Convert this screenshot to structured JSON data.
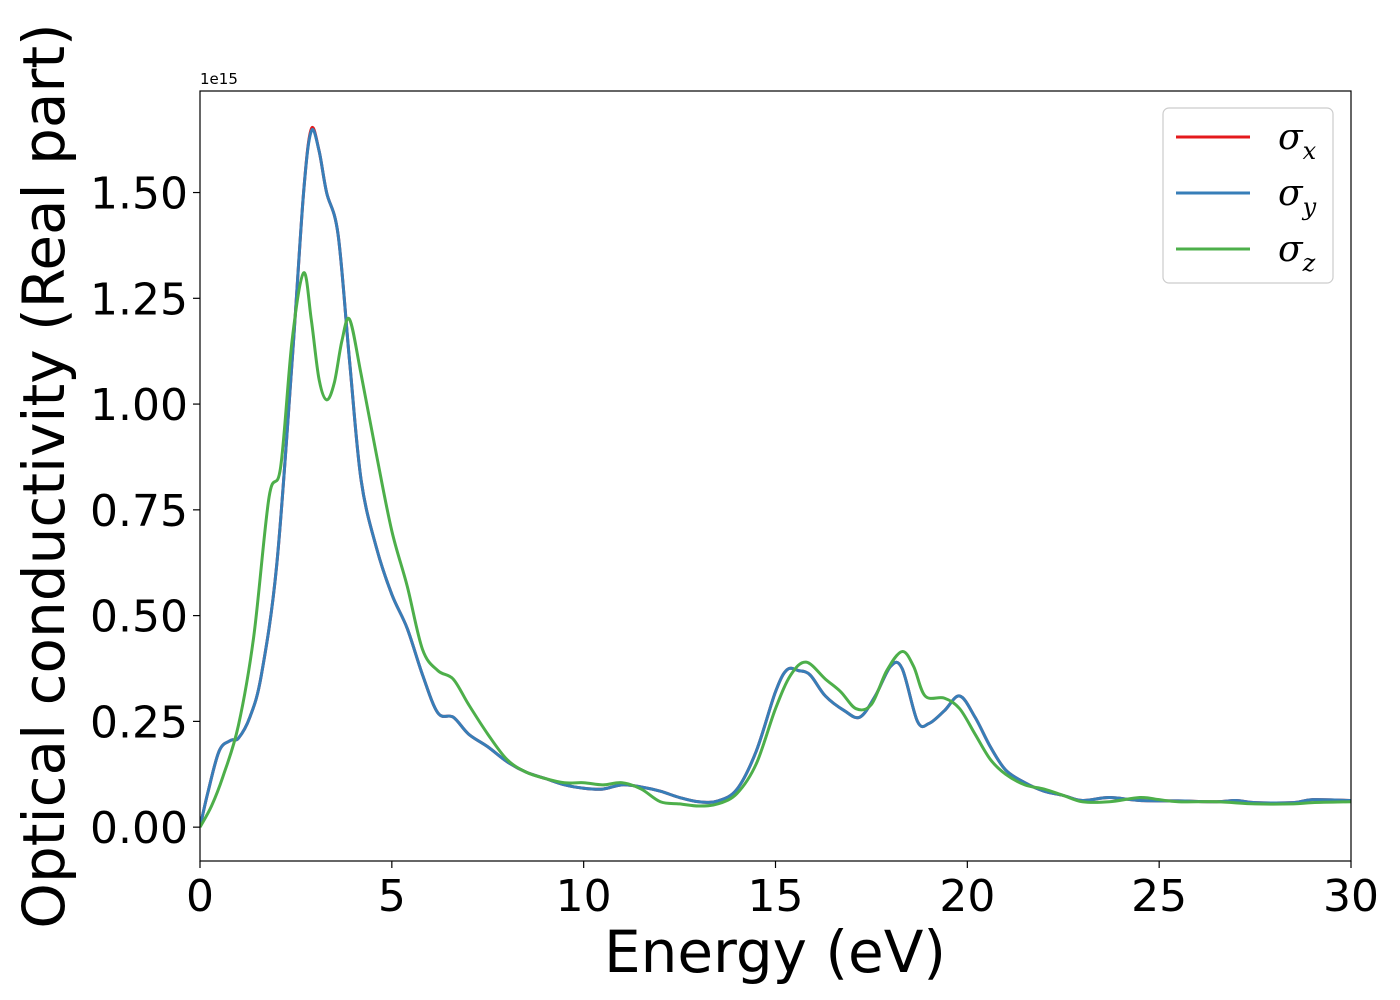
{
  "chart_data": {
    "type": "line",
    "title": "",
    "xlabel": "Energy (eV)",
    "ylabel": "Optical conductivity (Real part)",
    "y_offset_text": "1e15",
    "xlim": [
      0,
      30
    ],
    "ylim": [
      -0.08,
      1.74
    ],
    "y_scale_factor": "1e15",
    "grid": false,
    "legend_position": "top-right",
    "x_ticks": [
      {
        "value": 0,
        "label": "0"
      },
      {
        "value": 5,
        "label": "5"
      },
      {
        "value": 10,
        "label": "10"
      },
      {
        "value": 15,
        "label": "15"
      },
      {
        "value": 20,
        "label": "20"
      },
      {
        "value": 25,
        "label": "25"
      },
      {
        "value": 30,
        "label": "30"
      }
    ],
    "y_ticks": [
      {
        "value": 0.0,
        "label": "0.00"
      },
      {
        "value": 0.25,
        "label": "0.25"
      },
      {
        "value": 0.5,
        "label": "0.50"
      },
      {
        "value": 0.75,
        "label": "0.75"
      },
      {
        "value": 1.0,
        "label": "1.00"
      },
      {
        "value": 1.25,
        "label": "1.25"
      },
      {
        "value": 1.5,
        "label": "1.50"
      }
    ],
    "series": [
      {
        "name": "x",
        "legend_symbol": "σ",
        "legend_subscript": "x",
        "color": "#e41a1c",
        "points": [
          [
            0,
            0
          ],
          [
            0.2,
            0.08
          ],
          [
            0.5,
            0.18
          ],
          [
            0.8,
            0.205
          ],
          [
            1.0,
            0.21
          ],
          [
            1.3,
            0.26
          ],
          [
            1.6,
            0.36
          ],
          [
            2.0,
            0.62
          ],
          [
            2.4,
            1.1
          ],
          [
            2.7,
            1.5
          ],
          [
            2.9,
            1.65
          ],
          [
            3.1,
            1.6
          ],
          [
            3.3,
            1.5
          ],
          [
            3.6,
            1.4
          ],
          [
            3.9,
            1.1
          ],
          [
            4.2,
            0.82
          ],
          [
            4.6,
            0.66
          ],
          [
            5.0,
            0.55
          ],
          [
            5.4,
            0.47
          ],
          [
            5.8,
            0.36
          ],
          [
            6.2,
            0.27
          ],
          [
            6.6,
            0.26
          ],
          [
            7.0,
            0.22
          ],
          [
            7.5,
            0.19
          ],
          [
            8.0,
            0.155
          ],
          [
            8.5,
            0.13
          ],
          [
            9.0,
            0.115
          ],
          [
            9.5,
            0.1
          ],
          [
            10.0,
            0.092
          ],
          [
            10.5,
            0.09
          ],
          [
            11.0,
            0.1
          ],
          [
            11.5,
            0.095
          ],
          [
            12.0,
            0.085
          ],
          [
            12.5,
            0.07
          ],
          [
            13.0,
            0.06
          ],
          [
            13.5,
            0.062
          ],
          [
            14.0,
            0.09
          ],
          [
            14.5,
            0.18
          ],
          [
            15.0,
            0.32
          ],
          [
            15.3,
            0.372
          ],
          [
            15.6,
            0.37
          ],
          [
            15.9,
            0.36
          ],
          [
            16.3,
            0.31
          ],
          [
            16.8,
            0.275
          ],
          [
            17.2,
            0.26
          ],
          [
            17.6,
            0.31
          ],
          [
            18.0,
            0.38
          ],
          [
            18.3,
            0.375
          ],
          [
            18.7,
            0.25
          ],
          [
            19.0,
            0.245
          ],
          [
            19.4,
            0.275
          ],
          [
            19.8,
            0.31
          ],
          [
            20.2,
            0.26
          ],
          [
            20.6,
            0.19
          ],
          [
            21.0,
            0.135
          ],
          [
            21.5,
            0.105
          ],
          [
            22.0,
            0.085
          ],
          [
            22.5,
            0.075
          ],
          [
            23.0,
            0.063
          ],
          [
            23.7,
            0.07
          ],
          [
            24.5,
            0.063
          ],
          [
            25.5,
            0.062
          ],
          [
            26.5,
            0.06
          ],
          [
            27.0,
            0.063
          ],
          [
            27.5,
            0.058
          ],
          [
            28.5,
            0.058
          ],
          [
            29.0,
            0.065
          ],
          [
            30,
            0.063
          ]
        ]
      },
      {
        "name": "y",
        "legend_symbol": "σ",
        "legend_subscript": "y",
        "color": "#377eb8",
        "points": [
          [
            0,
            0
          ],
          [
            0.2,
            0.08
          ],
          [
            0.5,
            0.18
          ],
          [
            0.8,
            0.205
          ],
          [
            1.0,
            0.21
          ],
          [
            1.3,
            0.26
          ],
          [
            1.6,
            0.36
          ],
          [
            2.0,
            0.62
          ],
          [
            2.4,
            1.1
          ],
          [
            2.7,
            1.5
          ],
          [
            2.9,
            1.645
          ],
          [
            3.1,
            1.6
          ],
          [
            3.3,
            1.5
          ],
          [
            3.6,
            1.4
          ],
          [
            3.9,
            1.1
          ],
          [
            4.2,
            0.82
          ],
          [
            4.6,
            0.66
          ],
          [
            5.0,
            0.55
          ],
          [
            5.4,
            0.47
          ],
          [
            5.8,
            0.36
          ],
          [
            6.2,
            0.27
          ],
          [
            6.6,
            0.26
          ],
          [
            7.0,
            0.22
          ],
          [
            7.5,
            0.19
          ],
          [
            8.0,
            0.155
          ],
          [
            8.5,
            0.13
          ],
          [
            9.0,
            0.115
          ],
          [
            9.5,
            0.1
          ],
          [
            10.0,
            0.092
          ],
          [
            10.5,
            0.09
          ],
          [
            11.0,
            0.1
          ],
          [
            11.5,
            0.095
          ],
          [
            12.0,
            0.085
          ],
          [
            12.5,
            0.07
          ],
          [
            13.0,
            0.06
          ],
          [
            13.5,
            0.062
          ],
          [
            14.0,
            0.09
          ],
          [
            14.5,
            0.18
          ],
          [
            15.0,
            0.32
          ],
          [
            15.3,
            0.372
          ],
          [
            15.6,
            0.37
          ],
          [
            15.9,
            0.36
          ],
          [
            16.3,
            0.31
          ],
          [
            16.8,
            0.275
          ],
          [
            17.2,
            0.26
          ],
          [
            17.6,
            0.31
          ],
          [
            18.0,
            0.38
          ],
          [
            18.3,
            0.375
          ],
          [
            18.7,
            0.25
          ],
          [
            19.0,
            0.245
          ],
          [
            19.4,
            0.275
          ],
          [
            19.8,
            0.31
          ],
          [
            20.2,
            0.26
          ],
          [
            20.6,
            0.19
          ],
          [
            21.0,
            0.135
          ],
          [
            21.5,
            0.105
          ],
          [
            22.0,
            0.085
          ],
          [
            22.5,
            0.075
          ],
          [
            23.0,
            0.063
          ],
          [
            23.7,
            0.07
          ],
          [
            24.5,
            0.063
          ],
          [
            25.5,
            0.062
          ],
          [
            26.5,
            0.06
          ],
          [
            27.0,
            0.063
          ],
          [
            27.5,
            0.058
          ],
          [
            28.5,
            0.058
          ],
          [
            29.0,
            0.065
          ],
          [
            30,
            0.063
          ]
        ]
      },
      {
        "name": "z",
        "legend_symbol": "σ",
        "legend_subscript": "z",
        "color": "#4daf4a",
        "points": [
          [
            0,
            0
          ],
          [
            0.3,
            0.05
          ],
          [
            0.6,
            0.12
          ],
          [
            1.0,
            0.24
          ],
          [
            1.4,
            0.45
          ],
          [
            1.8,
            0.78
          ],
          [
            2.1,
            0.85
          ],
          [
            2.4,
            1.15
          ],
          [
            2.7,
            1.31
          ],
          [
            2.9,
            1.2
          ],
          [
            3.1,
            1.06
          ],
          [
            3.3,
            1.01
          ],
          [
            3.5,
            1.05
          ],
          [
            3.7,
            1.15
          ],
          [
            3.9,
            1.2
          ],
          [
            4.2,
            1.07
          ],
          [
            4.6,
            0.88
          ],
          [
            5.0,
            0.7
          ],
          [
            5.4,
            0.57
          ],
          [
            5.8,
            0.42
          ],
          [
            6.2,
            0.37
          ],
          [
            6.6,
            0.35
          ],
          [
            7.0,
            0.29
          ],
          [
            7.5,
            0.22
          ],
          [
            8.0,
            0.16
          ],
          [
            8.5,
            0.13
          ],
          [
            9.0,
            0.115
          ],
          [
            9.5,
            0.105
          ],
          [
            10.0,
            0.105
          ],
          [
            10.5,
            0.1
          ],
          [
            11.0,
            0.105
          ],
          [
            11.5,
            0.09
          ],
          [
            12.0,
            0.06
          ],
          [
            12.5,
            0.055
          ],
          [
            13.0,
            0.05
          ],
          [
            13.5,
            0.055
          ],
          [
            14.0,
            0.08
          ],
          [
            14.5,
            0.15
          ],
          [
            15.0,
            0.28
          ],
          [
            15.4,
            0.36
          ],
          [
            15.8,
            0.39
          ],
          [
            16.3,
            0.35
          ],
          [
            16.7,
            0.32
          ],
          [
            17.1,
            0.28
          ],
          [
            17.5,
            0.29
          ],
          [
            17.9,
            0.37
          ],
          [
            18.3,
            0.415
          ],
          [
            18.6,
            0.38
          ],
          [
            18.9,
            0.31
          ],
          [
            19.4,
            0.305
          ],
          [
            19.8,
            0.28
          ],
          [
            20.2,
            0.22
          ],
          [
            20.6,
            0.16
          ],
          [
            21.0,
            0.125
          ],
          [
            21.5,
            0.1
          ],
          [
            22.0,
            0.09
          ],
          [
            22.5,
            0.075
          ],
          [
            23.0,
            0.06
          ],
          [
            23.7,
            0.06
          ],
          [
            24.5,
            0.07
          ],
          [
            25.0,
            0.065
          ],
          [
            25.5,
            0.06
          ],
          [
            26.5,
            0.06
          ],
          [
            27.5,
            0.055
          ],
          [
            28.5,
            0.055
          ],
          [
            29.0,
            0.058
          ],
          [
            30,
            0.06
          ]
        ]
      }
    ]
  }
}
